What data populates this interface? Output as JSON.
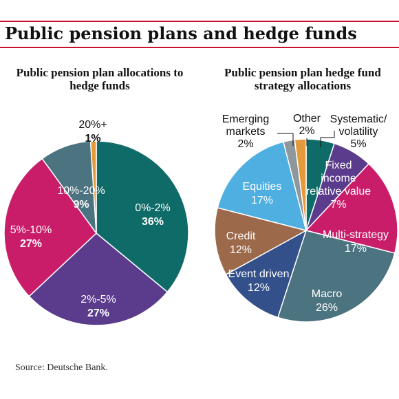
{
  "page": {
    "title": "Public pension plans and hedge funds",
    "source": "Source: Deutsche Bank."
  },
  "chart_data": [
    {
      "type": "pie",
      "title": "Public pension plan allocations to hedge funds",
      "slices": [
        {
          "label": "0%-2%",
          "value": 36,
          "display": "36%",
          "color": "#0e6b67"
        },
        {
          "label": "2%-5%",
          "value": 27,
          "display": "27%",
          "color": "#5a3b8c"
        },
        {
          "label": "5%-10%",
          "value": 27,
          "display": "27%",
          "color": "#c91d6a"
        },
        {
          "label": "10%-20%",
          "value": 9,
          "display": "9%",
          "color": "#4c7480"
        },
        {
          "label": "20%+",
          "value": 1,
          "display": "1%",
          "color": "#e49a3a"
        }
      ]
    },
    {
      "type": "pie",
      "title": "Public pension plan hedge fund strategy allocations",
      "slices": [
        {
          "label": "Systematic/ volatility",
          "value": 5,
          "display": "5%",
          "color": "#0e6b67"
        },
        {
          "label": "Fixed income relative value",
          "value": 7,
          "display": "7%",
          "color": "#5a3b8c"
        },
        {
          "label": "Multi-strategy",
          "value": 17,
          "display": "17%",
          "color": "#c91d6a"
        },
        {
          "label": "Macro",
          "value": 26,
          "display": "26%",
          "color": "#4c7480"
        },
        {
          "label": "Event driven",
          "value": 12,
          "display": "12%",
          "color": "#33508a"
        },
        {
          "label": "Credit",
          "value": 12,
          "display": "12%",
          "color": "#9c6a4a"
        },
        {
          "label": "Equities",
          "value": 17,
          "display": "17%",
          "color": "#4fafe0"
        },
        {
          "label": "Emerging markets",
          "value": 2,
          "display": "2%",
          "color": "#8e979c"
        },
        {
          "label": "Other",
          "value": 2,
          "display": "2%",
          "color": "#e49a3a"
        }
      ]
    }
  ]
}
